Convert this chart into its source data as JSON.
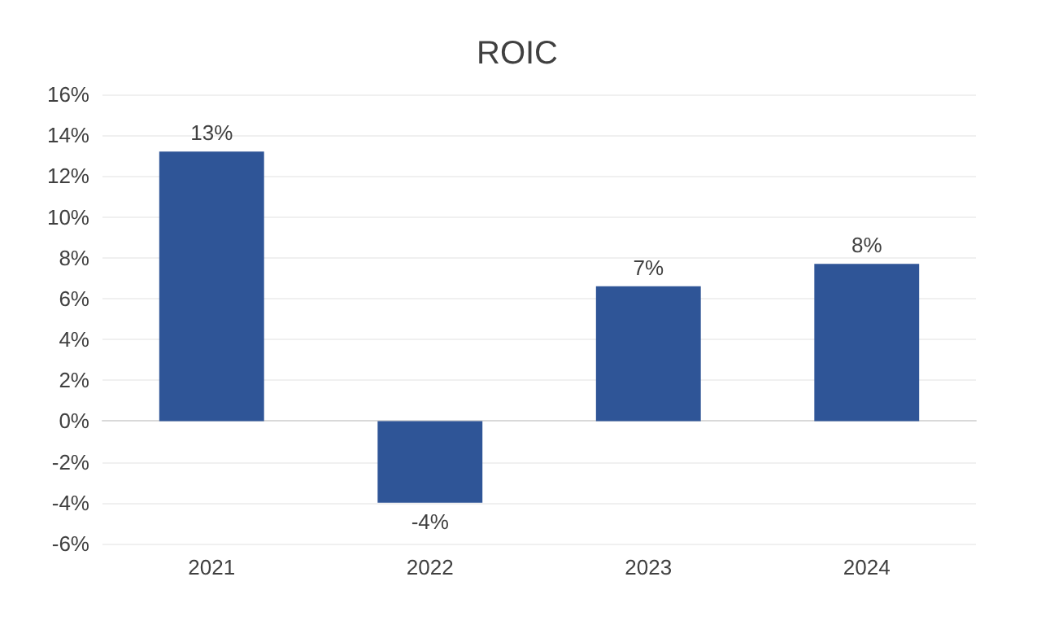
{
  "chart_data": {
    "type": "bar",
    "title": "ROIC",
    "categories": [
      "2021",
      "2022",
      "2023",
      "2024"
    ],
    "values": [
      13.2,
      -4.0,
      6.6,
      7.7
    ],
    "value_labels": [
      "13%",
      "-4%",
      "7%",
      "8%"
    ],
    "color": "#2f5597",
    "ylim": [
      -6,
      16
    ],
    "yticks": [
      {
        "value": -6,
        "label": "-6%"
      },
      {
        "value": -4,
        "label": "-4%"
      },
      {
        "value": -2,
        "label": "-2%"
      },
      {
        "value": 0,
        "label": "0%"
      },
      {
        "value": 2,
        "label": "2%"
      },
      {
        "value": 4,
        "label": "4%"
      },
      {
        "value": 6,
        "label": "6%"
      },
      {
        "value": 8,
        "label": "8%"
      },
      {
        "value": 10,
        "label": "10%"
      },
      {
        "value": 12,
        "label": "12%"
      },
      {
        "value": 14,
        "label": "14%"
      },
      {
        "value": 16,
        "label": "16%"
      }
    ],
    "grid": "y"
  }
}
